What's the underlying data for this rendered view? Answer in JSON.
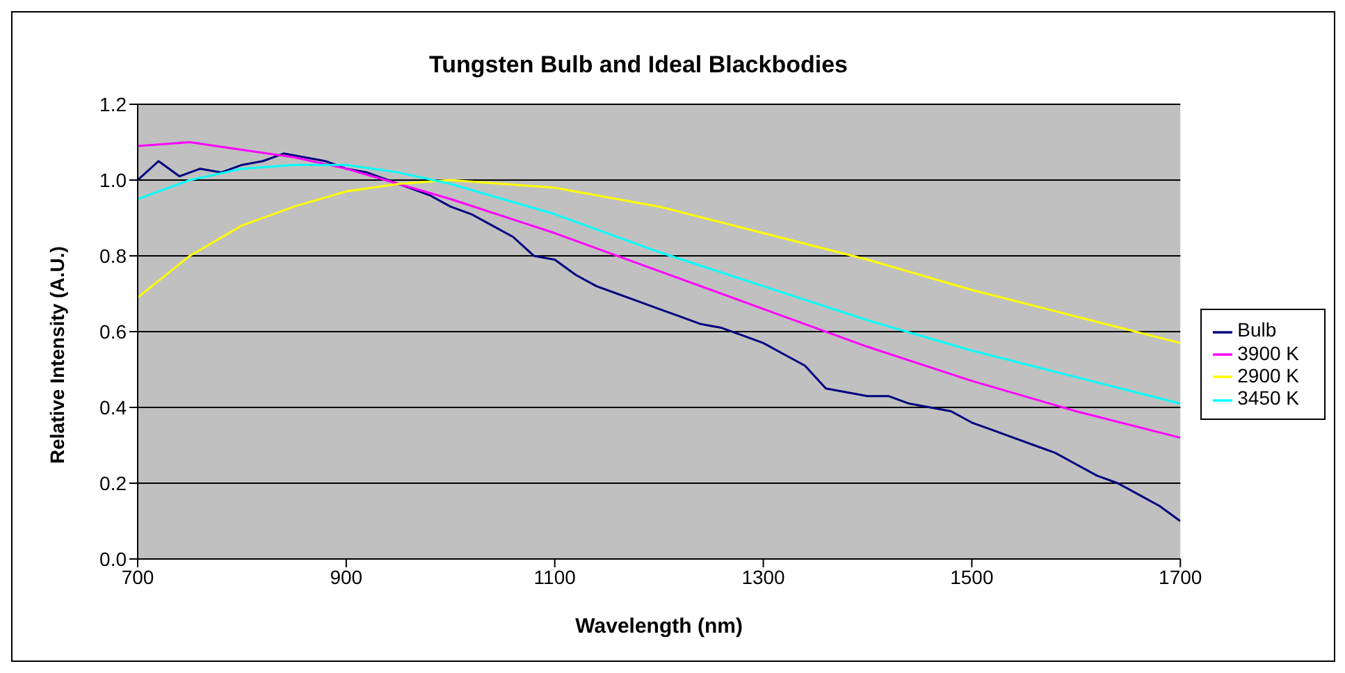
{
  "chart_data": {
    "type": "line",
    "title": "Tungsten Bulb and Ideal Blackbodies",
    "xlabel": "Wavelength (nm)",
    "ylabel": "Relative Intensity (A.U.)",
    "xlim": [
      700,
      1700
    ],
    "xticks": [
      700,
      900,
      1100,
      1300,
      1500,
      1700
    ],
    "ylim": [
      0,
      1.2
    ],
    "yticks": [
      {
        "value": 0,
        "label": "0.0"
      },
      {
        "value": 0.2,
        "label": "0.2"
      },
      {
        "value": 0.4,
        "label": "0.4"
      },
      {
        "value": 0.6,
        "label": "0.6"
      },
      {
        "value": 0.8,
        "label": "0.8"
      },
      {
        "value": 1,
        "label": "1.0"
      },
      {
        "value": 1.2,
        "label": "1.2"
      }
    ],
    "grid": "y",
    "legend": "right",
    "marker": "none",
    "line_style": "solid",
    "series": [
      {
        "name": "Bulb",
        "color": "#000080",
        "x": [
          700,
          720,
          740,
          760,
          780,
          800,
          820,
          840,
          860,
          880,
          900,
          920,
          940,
          960,
          980,
          1000,
          1020,
          1040,
          1060,
          1080,
          1100,
          1120,
          1140,
          1160,
          1180,
          1200,
          1220,
          1240,
          1260,
          1280,
          1300,
          1320,
          1340,
          1360,
          1380,
          1400,
          1420,
          1440,
          1460,
          1480,
          1500,
          1520,
          1540,
          1560,
          1580,
          1600,
          1620,
          1640,
          1660,
          1680,
          1700
        ],
        "values": [
          1.0,
          1.05,
          1.01,
          1.03,
          1.02,
          1.04,
          1.05,
          1.07,
          1.06,
          1.05,
          1.03,
          1.02,
          1.0,
          0.98,
          0.96,
          0.93,
          0.91,
          0.88,
          0.85,
          0.8,
          0.79,
          0.75,
          0.72,
          0.7,
          0.68,
          0.66,
          0.64,
          0.62,
          0.61,
          0.59,
          0.57,
          0.54,
          0.51,
          0.45,
          0.44,
          0.43,
          0.43,
          0.41,
          0.4,
          0.39,
          0.36,
          0.34,
          0.32,
          0.3,
          0.28,
          0.25,
          0.22,
          0.2,
          0.17,
          0.14,
          0.1
        ]
      },
      {
        "name": "3900 K",
        "color": "#ff00ff",
        "x": [
          700,
          750,
          800,
          850,
          900,
          950,
          1000,
          1100,
          1200,
          1300,
          1400,
          1500,
          1600,
          1700
        ],
        "values": [
          1.09,
          1.1,
          1.08,
          1.06,
          1.03,
          0.99,
          0.95,
          0.86,
          0.76,
          0.66,
          0.56,
          0.47,
          0.39,
          0.32
        ]
      },
      {
        "name": "2900 K",
        "color": "#ffff00",
        "x": [
          700,
          750,
          800,
          850,
          900,
          950,
          1000,
          1100,
          1200,
          1300,
          1400,
          1500,
          1600,
          1700
        ],
        "values": [
          0.69,
          0.8,
          0.88,
          0.93,
          0.97,
          0.99,
          1.0,
          0.98,
          0.93,
          0.86,
          0.79,
          0.71,
          0.64,
          0.57
        ]
      },
      {
        "name": "3450 K",
        "color": "#00ffff",
        "x": [
          700,
          750,
          800,
          850,
          900,
          950,
          1000,
          1100,
          1200,
          1300,
          1400,
          1500,
          1600,
          1700
        ],
        "values": [
          0.95,
          1.0,
          1.03,
          1.04,
          1.04,
          1.02,
          0.99,
          0.91,
          0.81,
          0.72,
          0.63,
          0.55,
          0.48,
          0.41
        ]
      }
    ]
  }
}
